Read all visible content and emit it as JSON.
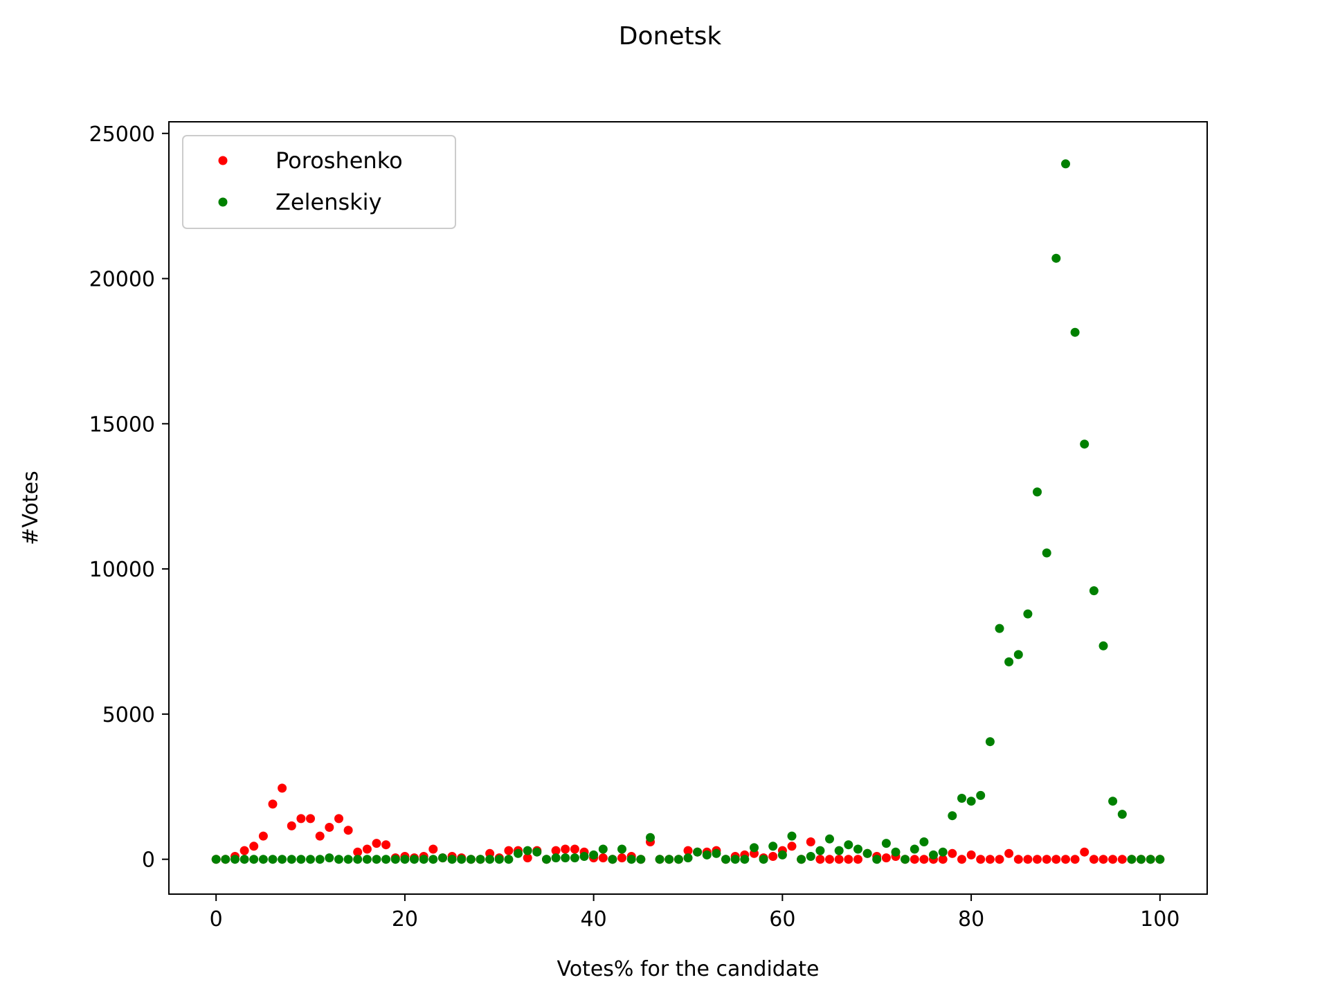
{
  "chart_data": {
    "type": "scatter",
    "title": "Donetsk",
    "xlabel": "Votes% for the candidate",
    "ylabel": "#Votes",
    "xlim": [
      -5,
      105
    ],
    "ylim": [
      -1200,
      25400
    ],
    "xticks": [
      0,
      20,
      40,
      60,
      80,
      100
    ],
    "yticks": [
      0,
      5000,
      10000,
      15000,
      20000,
      25000
    ],
    "grid": false,
    "legend": "top-left",
    "series": [
      {
        "name": "Poroshenko",
        "color": "#ff0000",
        "x": [
          0,
          1,
          2,
          3,
          4,
          5,
          6,
          7,
          8,
          9,
          10,
          11,
          12,
          13,
          14,
          15,
          16,
          17,
          18,
          19,
          20,
          21,
          22,
          23,
          24,
          25,
          26,
          27,
          28,
          29,
          30,
          31,
          32,
          33,
          34,
          35,
          36,
          37,
          38,
          39,
          40,
          41,
          42,
          43,
          44,
          45,
          46,
          47,
          48,
          49,
          50,
          51,
          52,
          53,
          54,
          55,
          56,
          57,
          58,
          59,
          60,
          61,
          62,
          63,
          64,
          65,
          66,
          67,
          68,
          69,
          70,
          71,
          72,
          73,
          74,
          75,
          76,
          77,
          78,
          79,
          80,
          81,
          82,
          83,
          84,
          85,
          86,
          87,
          88,
          89,
          90,
          91,
          92,
          93,
          94,
          95,
          96,
          97,
          98,
          99,
          100
        ],
        "y": [
          0,
          0,
          100,
          300,
          450,
          800,
          1900,
          2450,
          1150,
          1400,
          1400,
          800,
          1100,
          1400,
          1000,
          250,
          350,
          550,
          500,
          50,
          100,
          50,
          100,
          350,
          50,
          100,
          50,
          0,
          0,
          200,
          50,
          300,
          300,
          50,
          300,
          0,
          300,
          350,
          350,
          250,
          50,
          50,
          0,
          50,
          100,
          0,
          600,
          0,
          0,
          0,
          300,
          250,
          250,
          300,
          0,
          100,
          150,
          200,
          50,
          100,
          300,
          450,
          0,
          600,
          0,
          0,
          0,
          0,
          0,
          200,
          100,
          50,
          100,
          0,
          0,
          0,
          0,
          0,
          200,
          0,
          150,
          0,
          0,
          0,
          200,
          0,
          0,
          0,
          0,
          0,
          0,
          0,
          250,
          0,
          0,
          0,
          0,
          0,
          0,
          0,
          0
        ]
      },
      {
        "name": "Zelenskiy",
        "color": "#008000",
        "x": [
          0,
          1,
          2,
          3,
          4,
          5,
          6,
          7,
          8,
          9,
          10,
          11,
          12,
          13,
          14,
          15,
          16,
          17,
          18,
          19,
          20,
          21,
          22,
          23,
          24,
          25,
          26,
          27,
          28,
          29,
          30,
          31,
          32,
          33,
          34,
          35,
          36,
          37,
          38,
          39,
          40,
          41,
          42,
          43,
          44,
          45,
          46,
          47,
          48,
          49,
          50,
          51,
          52,
          53,
          54,
          55,
          56,
          57,
          58,
          59,
          60,
          61,
          62,
          63,
          64,
          65,
          66,
          67,
          68,
          69,
          70,
          71,
          72,
          73,
          74,
          75,
          76,
          77,
          78,
          79,
          80,
          81,
          82,
          83,
          84,
          85,
          86,
          87,
          88,
          89,
          90,
          91,
          92,
          93,
          94,
          95,
          96,
          97,
          98,
          99,
          100
        ],
        "y": [
          0,
          0,
          0,
          0,
          0,
          0,
          0,
          0,
          0,
          0,
          0,
          0,
          50,
          0,
          0,
          0,
          0,
          0,
          0,
          0,
          0,
          0,
          0,
          0,
          50,
          0,
          0,
          0,
          0,
          0,
          0,
          0,
          200,
          300,
          250,
          0,
          50,
          50,
          50,
          100,
          150,
          350,
          0,
          350,
          0,
          0,
          750,
          0,
          0,
          0,
          50,
          250,
          150,
          200,
          0,
          0,
          0,
          400,
          0,
          450,
          150,
          800,
          0,
          100,
          300,
          700,
          300,
          500,
          350,
          200,
          0,
          550,
          250,
          0,
          350,
          600,
          150,
          250,
          1500,
          2100,
          2000,
          2200,
          4050,
          7950,
          6800,
          7050,
          8450,
          12650,
          10550,
          20700,
          23950,
          18150,
          14300,
          9250,
          7350,
          2000,
          1550,
          0,
          0,
          0,
          0
        ]
      }
    ]
  }
}
